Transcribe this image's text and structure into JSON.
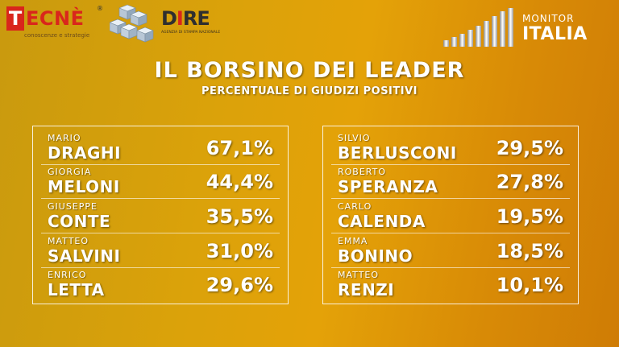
{
  "branding": {
    "tecne_first_letter": "T",
    "tecne_rest": "ECNÈ",
    "tecne_registered": "®",
    "tecne_tagline": "conoscenze e strategie",
    "dire_prefix": "D",
    "dire_accent": "I",
    "dire_suffix": "RE",
    "dire_tagline": "AGENZIA DI STAMPA NAZIONALE",
    "monitor_title": "MONITOR",
    "monitor_subtitle": "ITALIA"
  },
  "header": {
    "title": "IL BORSINO DEI LEADER",
    "subtitle": "PERCENTUALE DI GIUDIZI POSITIVI"
  },
  "colors": {
    "tecne_red": "#d9261c",
    "background_gold": "#dba20a",
    "background_orange": "#cf7c05",
    "text": "#ffffff"
  },
  "left_panel": {
    "leaders": [
      {
        "first": "MARIO",
        "last": "DRAGHI",
        "value": "67,1%"
      },
      {
        "first": "GIORGIA",
        "last": "MELONI",
        "value": "44,4%"
      },
      {
        "first": "GIUSEPPE",
        "last": "CONTE",
        "value": "35,5%"
      },
      {
        "first": "MATTEO",
        "last": "SALVINI",
        "value": "31,0%"
      },
      {
        "first": "ENRICO",
        "last": "LETTA",
        "value": "29,6%"
      }
    ]
  },
  "right_panel": {
    "leaders": [
      {
        "first": "SILVIO",
        "last": "BERLUSCONI",
        "value": "29,5%"
      },
      {
        "first": "ROBERTO",
        "last": "SPERANZA",
        "value": "27,8%"
      },
      {
        "first": "CARLO",
        "last": "CALENDA",
        "value": "19,5%"
      },
      {
        "first": "EMMA",
        "last": "BONINO",
        "value": "18,5%"
      },
      {
        "first": "MATTEO",
        "last": "RENZI",
        "value": "10,1%"
      }
    ]
  }
}
